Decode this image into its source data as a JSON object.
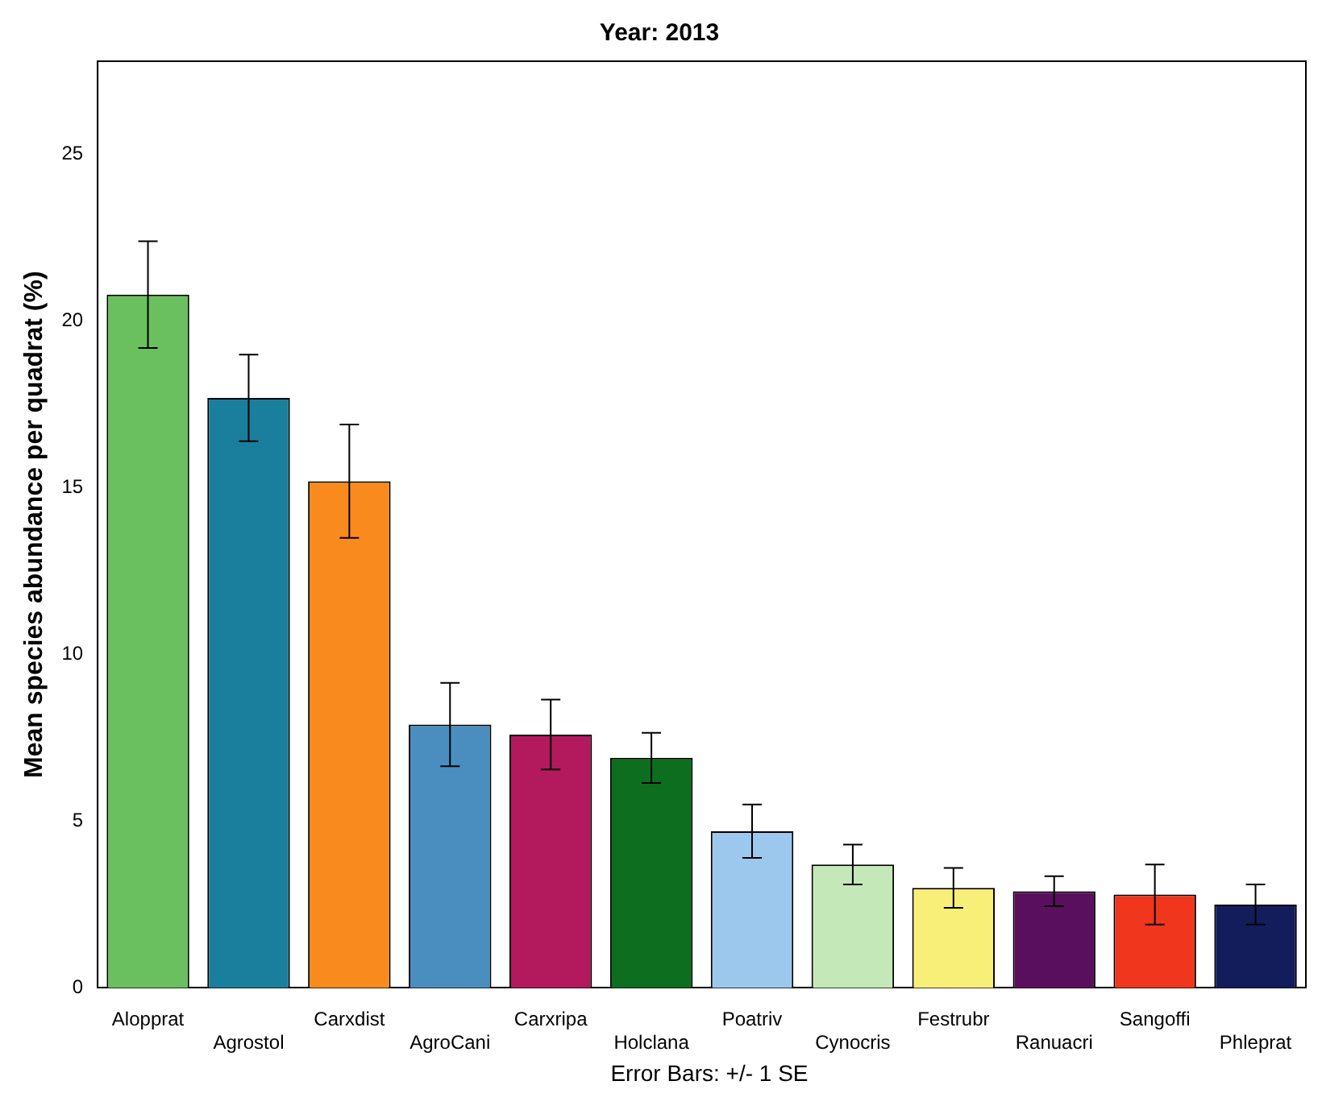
{
  "chart_data": {
    "type": "bar",
    "title": "Year: 2013",
    "ylabel": "Mean species abundance per quadrat (%)",
    "annotations": [
      "Error Bars: +/- 1 SE"
    ],
    "categories": [
      "Alopprat",
      "Agrostol",
      "Carxdist",
      "AgroCani",
      "Carxripa",
      "Holclana",
      "Poatriv",
      "Cynocris",
      "Festrubr",
      "Ranuacri",
      "Sangoffi",
      "Phleprat"
    ],
    "values": [
      20.8,
      17.7,
      15.2,
      7.9,
      7.6,
      6.9,
      4.7,
      3.7,
      3.0,
      2.9,
      2.8,
      2.5
    ],
    "errors": [
      1.6,
      1.3,
      1.7,
      1.25,
      1.05,
      0.75,
      0.8,
      0.6,
      0.6,
      0.45,
      0.9,
      0.6
    ],
    "colors": [
      "#6abf5e",
      "#1a7f9c",
      "#f98b1e",
      "#4a8ec0",
      "#b3195d",
      "#0d6e1f",
      "#9dc8ee",
      "#c4e8b8",
      "#f8ef78",
      "#5a0f5e",
      "#f0361c",
      "#141d5c"
    ],
    "ylim": [
      0,
      27.8
    ],
    "yticks": [
      0,
      5,
      10,
      15,
      20,
      25
    ],
    "grid": false,
    "legend": false
  }
}
